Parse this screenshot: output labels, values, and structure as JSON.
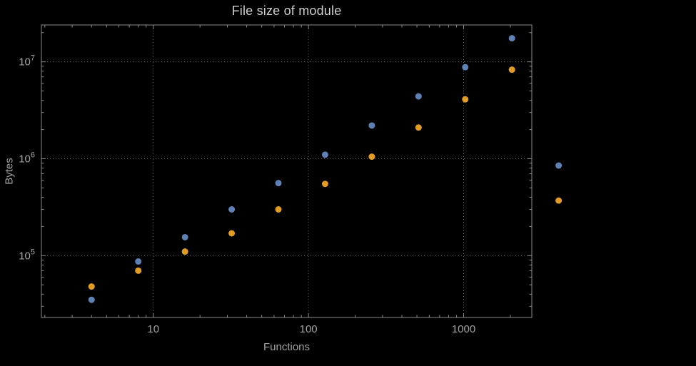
{
  "chart_data": {
    "type": "scatter",
    "title": "File size of module",
    "xlabel": "Functions",
    "ylabel": "Bytes",
    "x_scale": "log",
    "y_scale": "log",
    "xlim": [
      1.9,
      2750
    ],
    "ylim": [
      23000,
      24000000
    ],
    "grid": true,
    "legend": "none",
    "x": [
      4,
      8,
      16,
      32,
      64,
      128,
      256,
      512,
      1024,
      2048,
      4096
    ],
    "series": [
      {
        "name": "series-1-blue",
        "color": "#5E81B5",
        "values": [
          35000,
          87000,
          155000,
          300000,
          560000,
          1100000,
          2200000,
          4400000,
          8800000,
          17500000,
          850000
        ]
      },
      {
        "name": "series-2-orange",
        "color": "#E19C24",
        "values": [
          48000,
          70000,
          110000,
          170000,
          300000,
          550000,
          1050000,
          2100000,
          4100000,
          8300000,
          370000
        ]
      }
    ],
    "x_ticks": [
      {
        "value": 10,
        "label": "10"
      },
      {
        "value": 100,
        "label": "100"
      },
      {
        "value": 1000,
        "label": "1000"
      }
    ],
    "y_ticks": [
      {
        "value": 100000,
        "base": "10",
        "exp": "5"
      },
      {
        "value": 1000000,
        "base": "10",
        "exp": "6"
      },
      {
        "value": 10000000,
        "base": "10",
        "exp": "7"
      }
    ],
    "point_radius": 4.5,
    "colors": {
      "background": "#000000",
      "frame": "#8a8a8a",
      "grid": "#5e5e5e",
      "tick_labels": "#a3a3a3",
      "axis_labels": "#a3a3a3",
      "title": "#cfcfcf"
    }
  }
}
